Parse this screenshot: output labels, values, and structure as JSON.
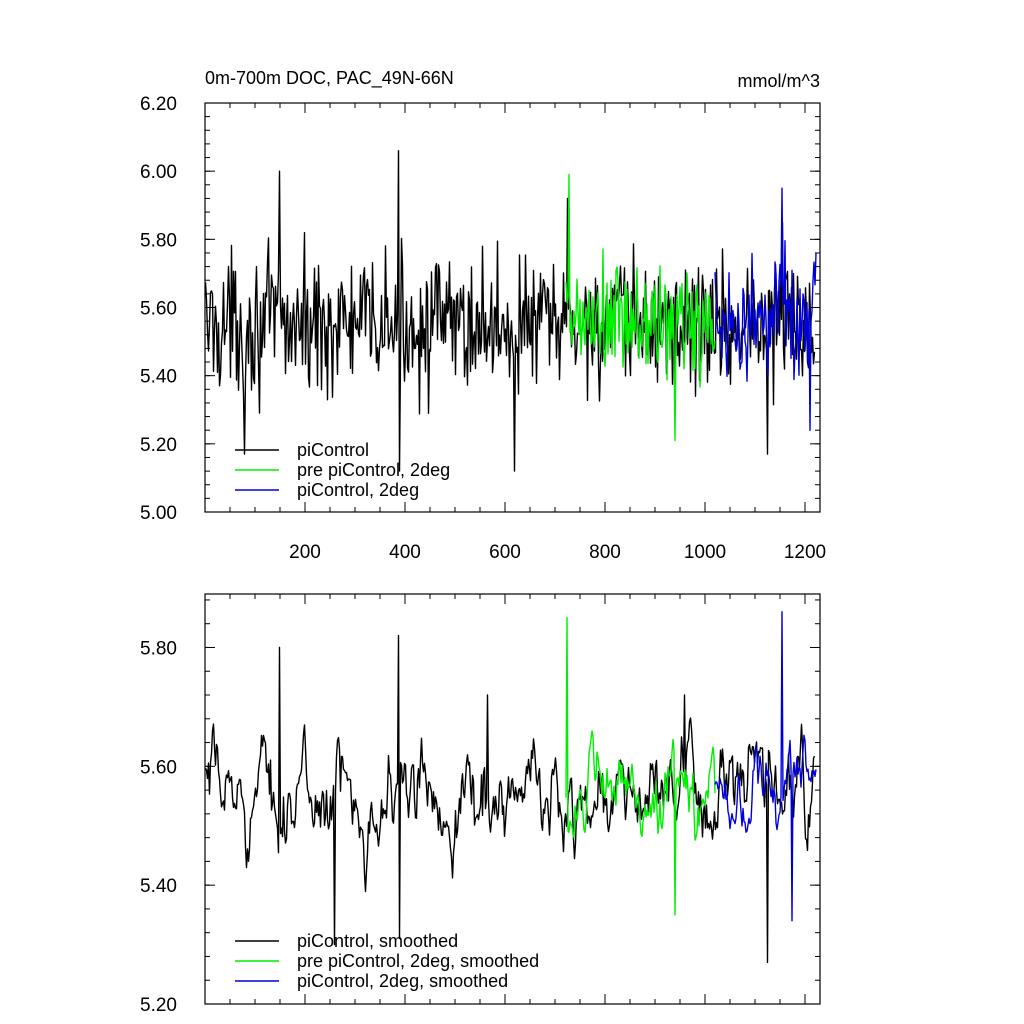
{
  "chart_data": [
    {
      "type": "line",
      "title": "0m-700m DOC, PAC_49N-66N",
      "units": "mmol/m^3",
      "ylim": [
        5.0,
        6.2
      ],
      "xlim": [
        0,
        1230
      ],
      "y_ticks": [
        "5.00",
        "5.20",
        "5.40",
        "5.60",
        "5.80",
        "6.00",
        "6.20"
      ],
      "x_ticks": [
        "200",
        "400",
        "600",
        "800",
        "1000",
        "1200"
      ],
      "legend_position": "bottom-left",
      "series": [
        {
          "name": "piControl",
          "color": "#000000",
          "x_start": 1,
          "x_end": 1220,
          "mean": 5.55,
          "amplitude": 0.15,
          "peaks": [
            [
              150,
              6.0
            ],
            [
              388,
              6.06
            ],
            [
              725,
              5.92
            ],
            [
              1155,
              5.85
            ]
          ],
          "troughs": [
            [
              80,
              5.17
            ],
            [
              390,
              5.12
            ],
            [
              620,
              5.12
            ],
            [
              1125,
              5.17
            ]
          ]
        },
        {
          "name": "pre piControl, 2deg",
          "color": "#00ee00",
          "x_start": 722,
          "x_end": 1020,
          "mean": 5.55,
          "amplitude": 0.14,
          "peaks": [
            [
              728,
              5.99
            ]
          ],
          "troughs": [
            [
              940,
              5.21
            ]
          ]
        },
        {
          "name": "piControl, 2deg",
          "color": "#0000dd",
          "x_start": 1020,
          "x_end": 1222,
          "mean": 5.57,
          "amplitude": 0.14,
          "peaks": [
            [
              1155,
              5.95
            ]
          ],
          "troughs": [
            [
              1210,
              5.24
            ]
          ]
        }
      ]
    },
    {
      "type": "line",
      "title": "",
      "ylim": [
        5.2,
        5.89
      ],
      "xlim": [
        0,
        1230
      ],
      "y_ticks": [
        "5.20",
        "5.40",
        "5.60",
        "5.80"
      ],
      "y_tick_values": [
        5.2,
        5.4,
        5.6,
        5.8
      ],
      "legend_position": "bottom-left",
      "series": [
        {
          "name": "piControl, smoothed",
          "color": "#000000",
          "x_start": 1,
          "x_end": 1220,
          "mean": 5.55,
          "amplitude": 0.09,
          "peaks": [
            [
              150,
              5.8
            ],
            [
              388,
              5.82
            ],
            [
              565,
              5.72
            ],
            [
              960,
              5.72
            ],
            [
              1125,
              5.72
            ]
          ],
          "troughs": [
            [
              260,
              5.3
            ],
            [
              390,
              5.31
            ],
            [
              1125,
              5.27
            ]
          ]
        },
        {
          "name": "pre piControl, 2deg, smoothed",
          "color": "#00ee00",
          "x_start": 722,
          "x_end": 1020,
          "mean": 5.55,
          "amplitude": 0.08,
          "peaks": [
            [
              725,
              5.85
            ]
          ],
          "troughs": [
            [
              940,
              5.35
            ]
          ]
        },
        {
          "name": "piControl, 2deg, smoothed",
          "color": "#0000dd",
          "x_start": 1020,
          "x_end": 1222,
          "mean": 5.57,
          "amplitude": 0.07,
          "peaks": [
            [
              1155,
              5.86
            ]
          ],
          "troughs": [
            [
              1175,
              5.34
            ]
          ]
        }
      ]
    }
  ]
}
